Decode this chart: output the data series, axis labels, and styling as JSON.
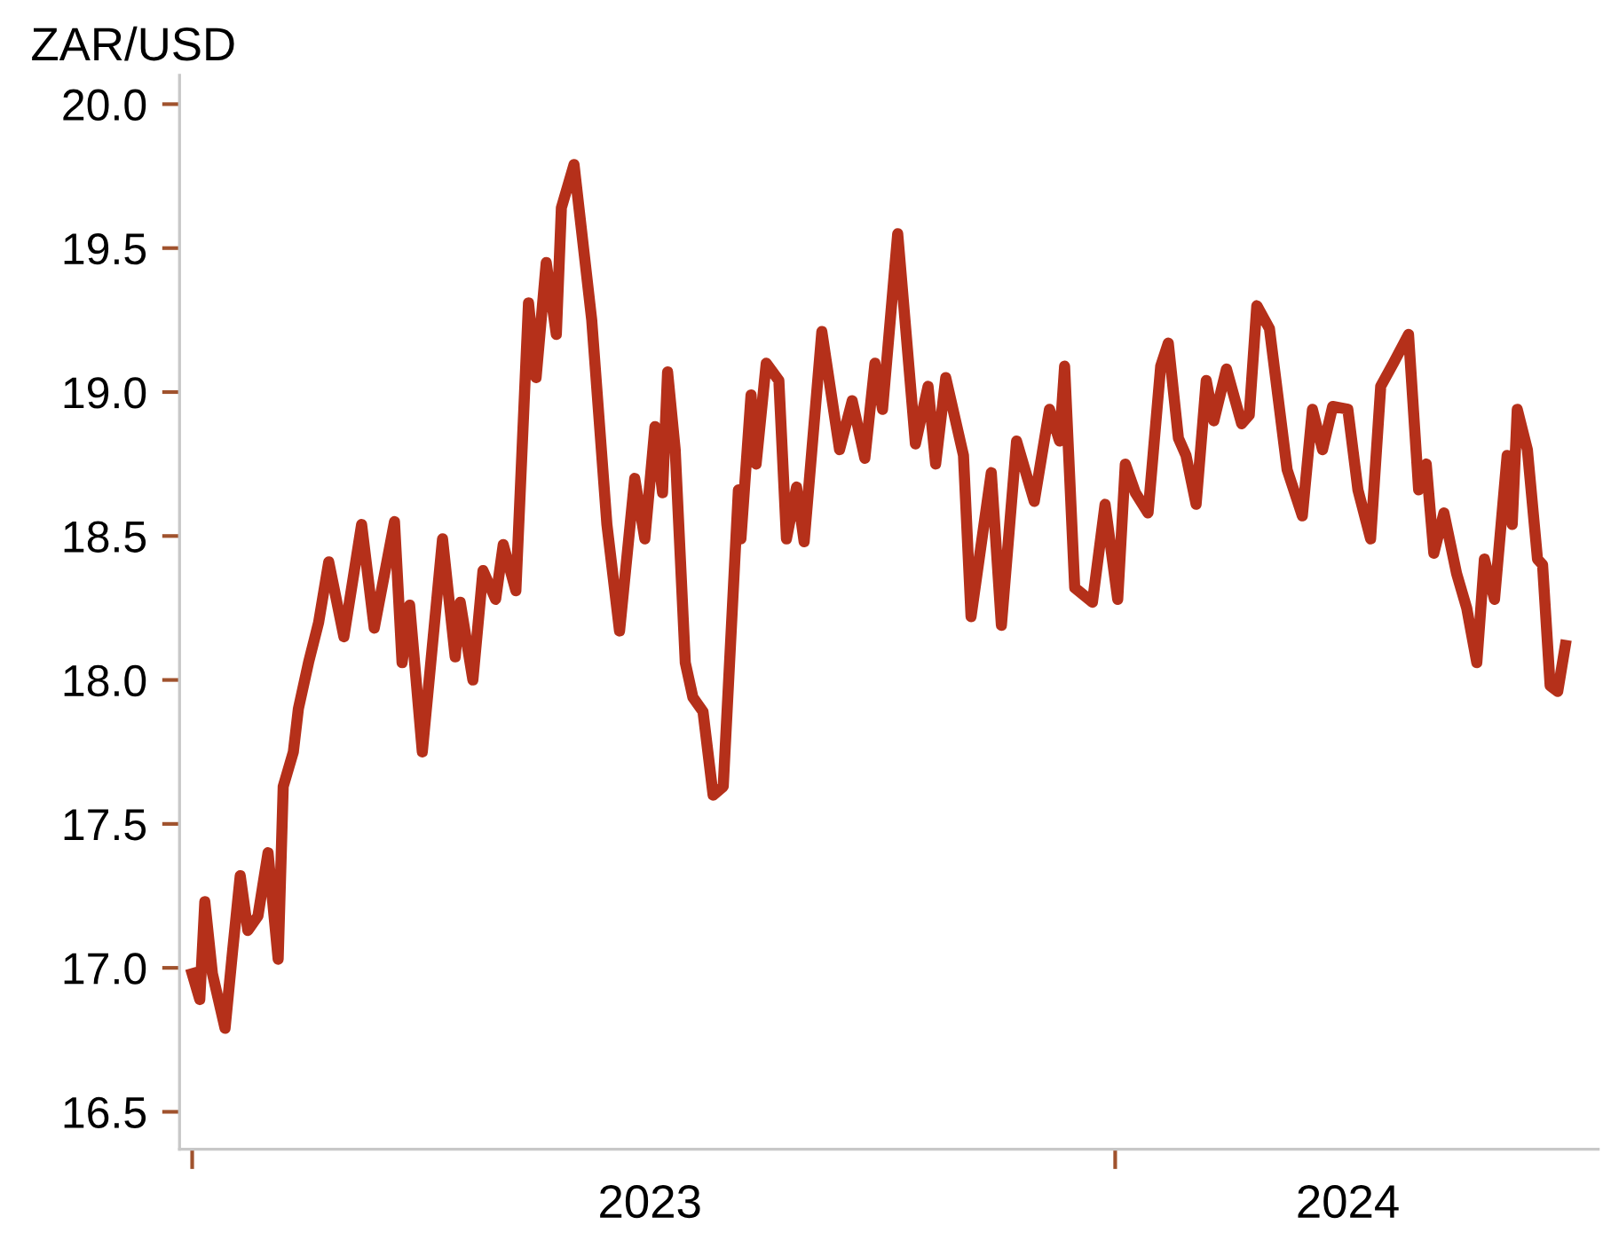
{
  "chart_data": {
    "type": "line",
    "ylabel": "ZAR/USD",
    "x": [
      "2023-01-01",
      "2023-01-04",
      "2023-01-06",
      "2023-01-09",
      "2023-01-14",
      "2023-01-17",
      "2023-01-20",
      "2023-01-23",
      "2023-01-27",
      "2023-01-31",
      "2023-02-04",
      "2023-02-06",
      "2023-02-10",
      "2023-02-12",
      "2023-02-16",
      "2023-02-20",
      "2023-02-24",
      "2023-03-02",
      "2023-03-09",
      "2023-03-14",
      "2023-03-22",
      "2023-03-25",
      "2023-03-28",
      "2023-04-02",
      "2023-04-10",
      "2023-04-15",
      "2023-04-17",
      "2023-04-22",
      "2023-04-26",
      "2023-05-01",
      "2023-05-04",
      "2023-05-09",
      "2023-05-14",
      "2023-05-17",
      "2023-05-21",
      "2023-05-25",
      "2023-05-27",
      "2023-06-01",
      "2023-06-08",
      "2023-06-14",
      "2023-06-19",
      "2023-06-25",
      "2023-06-29",
      "2023-07-03",
      "2023-07-06",
      "2023-07-08",
      "2023-07-11",
      "2023-07-15",
      "2023-07-18",
      "2023-07-22",
      "2023-07-26",
      "2023-07-30",
      "2023-08-05",
      "2023-08-06",
      "2023-08-10",
      "2023-08-12",
      "2023-08-16",
      "2023-08-21",
      "2023-08-24",
      "2023-08-28",
      "2023-08-31",
      "2023-09-07",
      "2023-09-14",
      "2023-09-19",
      "2023-09-24",
      "2023-09-28",
      "2023-10-01",
      "2023-10-07",
      "2023-10-14",
      "2023-10-19",
      "2023-10-22",
      "2023-10-26",
      "2023-11-02",
      "2023-11-05",
      "2023-11-13",
      "2023-11-17",
      "2023-11-23",
      "2023-11-30",
      "2023-12-06",
      "2023-12-10",
      "2023-12-12",
      "2023-12-16",
      "2023-12-23",
      "2023-12-28",
      "2024-01-02",
      "2024-01-05",
      "2024-01-09",
      "2024-01-14",
      "2024-01-19",
      "2024-01-22",
      "2024-01-26",
      "2024-01-29",
      "2024-02-02",
      "2024-02-06",
      "2024-02-09",
      "2024-02-14",
      "2024-02-20",
      "2024-02-23",
      "2024-02-26",
      "2024-03-02",
      "2024-03-09",
      "2024-03-15",
      "2024-03-19",
      "2024-03-23",
      "2024-03-27",
      "2024-04-02",
      "2024-04-06",
      "2024-04-11",
      "2024-04-15",
      "2024-04-20",
      "2024-04-26",
      "2024-04-30",
      "2024-05-03",
      "2024-05-06",
      "2024-05-10",
      "2024-05-15",
      "2024-05-19",
      "2024-05-23",
      "2024-05-26",
      "2024-05-30",
      "2024-06-04",
      "2024-06-06",
      "2024-06-08",
      "2024-06-12",
      "2024-06-16",
      "2024-06-18",
      "2024-06-21",
      "2024-06-24",
      "2024-06-27"
    ],
    "series": [
      {
        "color": "#b5301a",
        "values": [
          16.98,
          16.89,
          17.23,
          16.98,
          16.79,
          17.06,
          17.32,
          17.13,
          17.18,
          17.4,
          17.03,
          17.63,
          17.75,
          17.9,
          18.06,
          18.2,
          18.41,
          18.15,
          18.54,
          18.18,
          18.55,
          18.06,
          18.26,
          17.75,
          18.49,
          18.08,
          18.27,
          18.0,
          18.38,
          18.28,
          18.47,
          18.31,
          19.31,
          19.05,
          19.45,
          19.2,
          19.64,
          19.79,
          19.25,
          18.54,
          18.17,
          18.7,
          18.49,
          18.88,
          18.65,
          19.07,
          18.8,
          18.06,
          17.94,
          17.89,
          17.6,
          17.63,
          18.66,
          18.49,
          18.99,
          18.75,
          19.1,
          19.04,
          18.49,
          18.67,
          18.48,
          19.21,
          18.8,
          18.97,
          18.77,
          19.1,
          18.94,
          19.55,
          18.82,
          19.02,
          18.75,
          19.05,
          18.78,
          18.22,
          18.72,
          18.19,
          18.83,
          18.62,
          18.94,
          18.83,
          19.09,
          18.32,
          18.27,
          18.61,
          18.28,
          18.75,
          18.65,
          18.58,
          19.09,
          19.17,
          18.84,
          18.78,
          18.61,
          19.04,
          18.9,
          19.08,
          18.89,
          18.92,
          19.3,
          19.22,
          18.73,
          18.57,
          18.94,
          18.8,
          18.95,
          18.94,
          18.66,
          18.49,
          19.02,
          19.1,
          19.2,
          18.66,
          18.75,
          18.44,
          18.58,
          18.37,
          18.25,
          18.06,
          18.42,
          18.28,
          18.78,
          18.54,
          18.94,
          18.8,
          18.42,
          18.4,
          17.98,
          17.96,
          18.12
        ]
      }
    ],
    "xlim": [
      "2022-12-27",
      "2024-07-10"
    ],
    "xticks": [
      {
        "value": "2023-01-01",
        "label": null
      },
      {
        "value": "2023-07-01",
        "label": "2023"
      },
      {
        "value": "2024-01-01",
        "label": null
      },
      {
        "value": "2024-04-02",
        "label": "2024"
      }
    ],
    "ylim": [
      16.37,
      20.1
    ],
    "yticks": [
      {
        "value": 16.5,
        "label": "16.5"
      },
      {
        "value": 17,
        "label": "17.0"
      },
      {
        "value": 17.5,
        "label": "17.5"
      },
      {
        "value": 18,
        "label": "18.0"
      },
      {
        "value": 18.5,
        "label": "18.5"
      },
      {
        "value": 19,
        "label": "19.0"
      },
      {
        "value": 19.5,
        "label": "19.5"
      },
      {
        "value": 20,
        "label": "20.0"
      }
    ],
    "grid": false,
    "marker": "none",
    "line_style": "solid"
  }
}
